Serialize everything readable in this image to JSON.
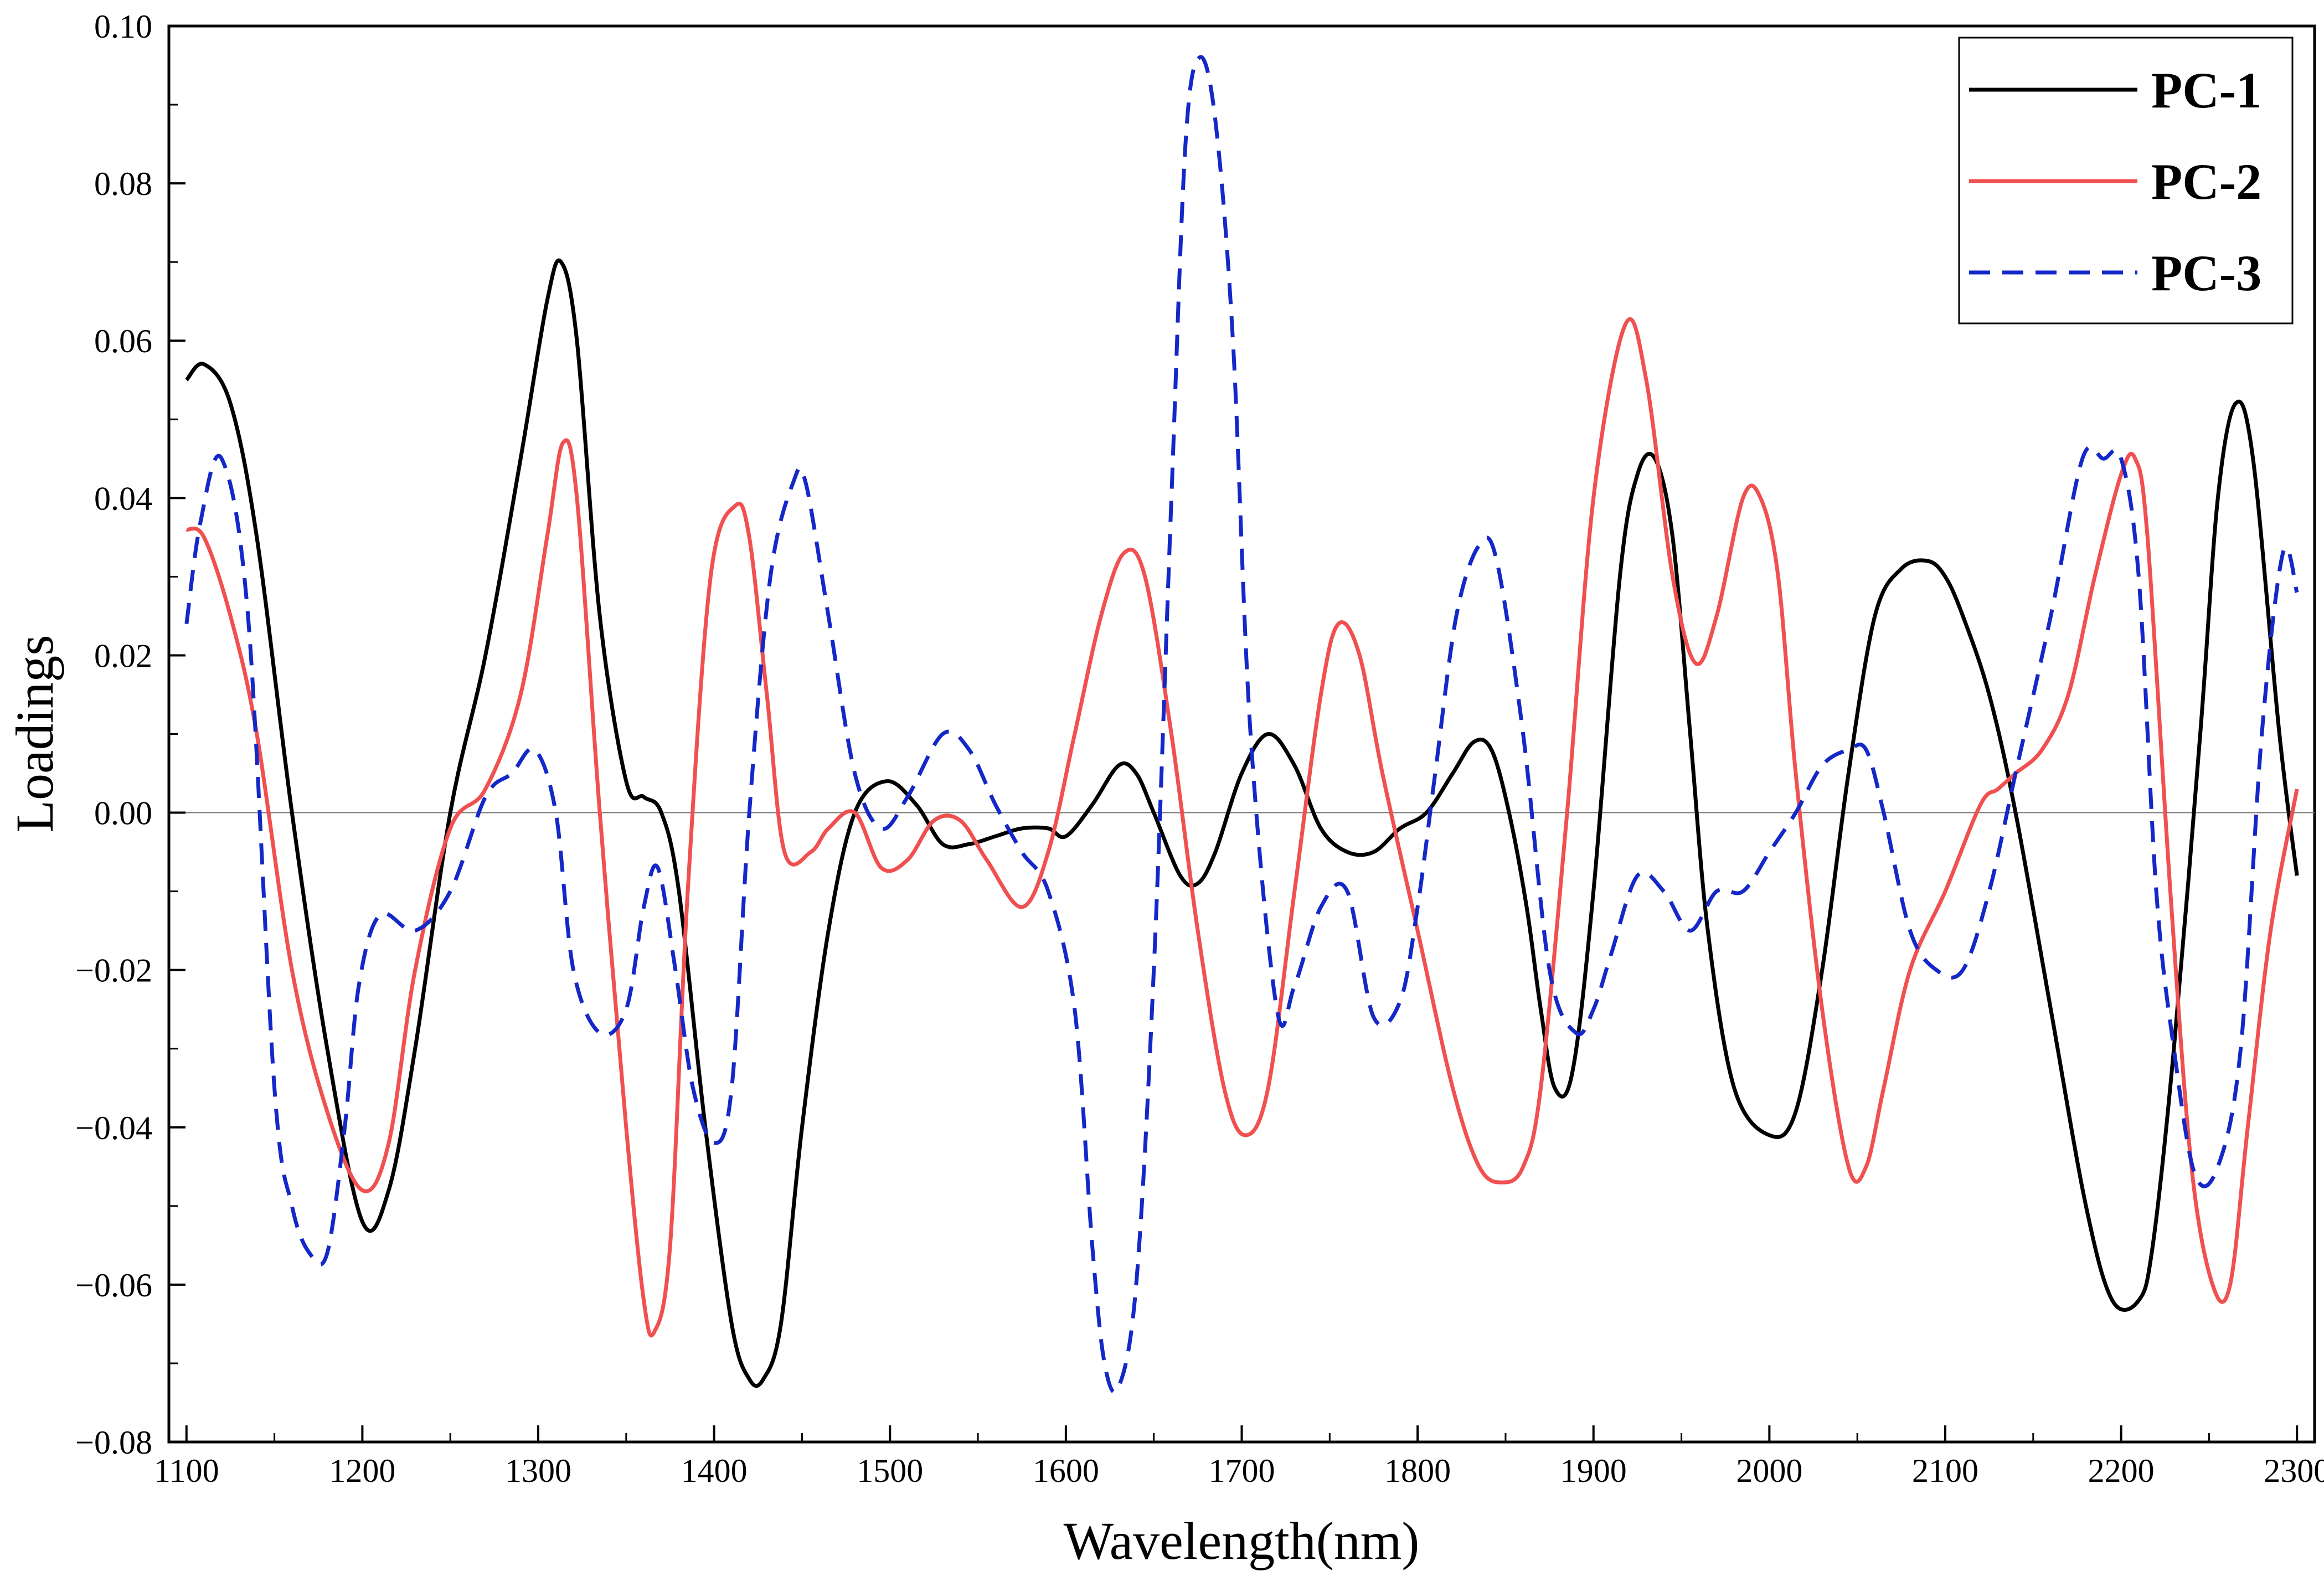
{
  "chart_data": {
    "type": "line",
    "title": "",
    "xlabel": "Wavelength(nm)",
    "ylabel": "Loadings",
    "xlim": [
      1090,
      2310
    ],
    "ylim": [
      -0.08,
      0.1
    ],
    "xticks": [
      1100,
      1200,
      1300,
      1400,
      1500,
      1600,
      1700,
      1800,
      1900,
      2000,
      2100,
      2200,
      2300
    ],
    "xtick_labels": [
      "1100",
      "1200",
      "1300",
      "1400",
      "1500",
      "1600",
      "1700",
      "1800",
      "1900",
      "2000",
      "2100",
      "2200",
      "2300"
    ],
    "yticks": [
      -0.08,
      -0.06,
      -0.04,
      -0.02,
      0.0,
      0.02,
      0.04,
      0.06,
      0.08,
      0.1
    ],
    "ytick_labels": [
      "−0.08",
      "−0.06",
      "−0.04",
      "−0.02",
      "0.00",
      "0.02",
      "0.04",
      "0.06",
      "0.08",
      "0.10"
    ],
    "zero_line": true,
    "legend_position": "top-right",
    "series": [
      {
        "name": "PC-1",
        "color": "#000000",
        "dash": "solid",
        "x": [
          1100,
          1110,
          1125,
          1140,
          1160,
          1180,
          1200,
          1215,
          1230,
          1250,
          1270,
          1290,
          1305,
          1313,
          1322,
          1335,
          1350,
          1360,
          1370,
          1380,
          1395,
          1410,
          1420,
          1428,
          1438,
          1450,
          1465,
          1480,
          1498,
          1515,
          1530,
          1545,
          1560,
          1575,
          1590,
          1600,
          1615,
          1630,
          1640,
          1650,
          1665,
          1675,
          1685,
          1700,
          1715,
          1730,
          1745,
          1760,
          1775,
          1790,
          1805,
          1820,
          1832,
          1842,
          1852,
          1862,
          1870,
          1878,
          1888,
          1900,
          1915,
          1925,
          1935,
          1945,
          1955,
          1965,
          1980,
          2000,
          2015,
          2030,
          2045,
          2060,
          2075,
          2090,
          2100,
          2110,
          2125,
          2140,
          2160,
          2180,
          2195,
          2210,
          2218,
          2230,
          2245,
          2255,
          2265,
          2275,
          2290,
          2300
        ],
        "values": [
          0.055,
          0.057,
          0.052,
          0.035,
          0.0,
          -0.03,
          -0.052,
          -0.048,
          -0.03,
          0.0,
          0.02,
          0.045,
          0.065,
          0.07,
          0.06,
          0.025,
          0.004,
          0.002,
          0.0,
          -0.01,
          -0.04,
          -0.065,
          -0.072,
          -0.072,
          -0.065,
          -0.04,
          -0.015,
          0.0,
          0.004,
          0.001,
          -0.004,
          -0.004,
          -0.003,
          -0.002,
          -0.002,
          -0.003,
          0.001,
          0.006,
          0.005,
          0.0,
          -0.008,
          -0.009,
          -0.005,
          0.005,
          0.01,
          0.006,
          -0.002,
          -0.005,
          -0.005,
          -0.002,
          0.0,
          0.005,
          0.009,
          0.008,
          0.0,
          -0.012,
          -0.025,
          -0.035,
          -0.033,
          -0.01,
          0.03,
          0.043,
          0.045,
          0.035,
          0.01,
          -0.015,
          -0.035,
          -0.041,
          -0.038,
          -0.02,
          0.005,
          0.025,
          0.031,
          0.032,
          0.03,
          0.025,
          0.015,
          0.0,
          -0.025,
          -0.05,
          -0.062,
          -0.062,
          -0.055,
          -0.03,
          0.01,
          0.04,
          0.052,
          0.045,
          0.01,
          -0.008
        ]
      },
      {
        "name": "PC-2",
        "color": "#f05050",
        "dash": "solid",
        "x": [
          1100,
          1110,
          1125,
          1140,
          1160,
          1180,
          1200,
          1215,
          1230,
          1250,
          1270,
          1290,
          1305,
          1314,
          1322,
          1335,
          1350,
          1360,
          1366,
          1375,
          1385,
          1398,
          1412,
          1420,
          1430,
          1440,
          1455,
          1465,
          1480,
          1495,
          1510,
          1525,
          1540,
          1555,
          1575,
          1590,
          1605,
          1620,
          1633,
          1645,
          1660,
          1675,
          1690,
          1702,
          1715,
          1730,
          1745,
          1755,
          1767,
          1780,
          1800,
          1820,
          1835,
          1848,
          1860,
          1870,
          1885,
          1900,
          1918,
          1930,
          1945,
          1958,
          1970,
          1985,
          1995,
          2005,
          2015,
          2030,
          2045,
          2055,
          2065,
          2080,
          2100,
          2120,
          2130,
          2140,
          2155,
          2170,
          2185,
          2200,
          2208,
          2215,
          2228,
          2240,
          2252,
          2262,
          2272,
          2285,
          2300
        ],
        "values": [
          0.036,
          0.035,
          0.025,
          0.01,
          -0.02,
          -0.038,
          -0.048,
          -0.042,
          -0.02,
          -0.002,
          0.003,
          0.015,
          0.035,
          0.047,
          0.04,
          0.0,
          -0.04,
          -0.062,
          -0.066,
          -0.055,
          -0.01,
          0.03,
          0.039,
          0.035,
          0.015,
          -0.005,
          -0.005,
          -0.002,
          0.0,
          -0.007,
          -0.006,
          -0.001,
          -0.001,
          -0.006,
          -0.012,
          -0.005,
          0.01,
          0.025,
          0.033,
          0.03,
          0.01,
          -0.015,
          -0.035,
          -0.041,
          -0.035,
          -0.01,
          0.015,
          0.024,
          0.02,
          0.005,
          -0.015,
          -0.035,
          -0.045,
          -0.047,
          -0.045,
          -0.035,
          0.0,
          0.04,
          0.062,
          0.055,
          0.03,
          0.019,
          0.025,
          0.04,
          0.04,
          0.03,
          0.005,
          -0.025,
          -0.045,
          -0.045,
          -0.035,
          -0.02,
          -0.01,
          0.001,
          0.003,
          0.005,
          0.008,
          0.015,
          0.03,
          0.043,
          0.045,
          0.035,
          -0.01,
          -0.045,
          -0.06,
          -0.06,
          -0.04,
          -0.015,
          0.003
        ]
      },
      {
        "name": "PC-3",
        "color": "#1428c8",
        "dash": "dashed",
        "x": [
          1100,
          1108,
          1120,
          1135,
          1150,
          1160,
          1170,
          1180,
          1190,
          1198,
          1210,
          1230,
          1250,
          1270,
          1285,
          1298,
          1310,
          1320,
          1335,
          1350,
          1360,
          1368,
          1378,
          1388,
          1400,
          1410,
          1420,
          1432,
          1445,
          1452,
          1465,
          1480,
          1495,
          1510,
          1530,
          1545,
          1560,
          1575,
          1590,
          1605,
          1615,
          1622,
          1630,
          1640,
          1650,
          1660,
          1668,
          1676,
          1685,
          1695,
          1705,
          1720,
          1730,
          1745,
          1760,
          1775,
          1790,
          1800,
          1810,
          1822,
          1835,
          1845,
          1860,
          1875,
          1890,
          1900,
          1910,
          1925,
          1940,
          1955,
          1970,
          1985,
          2000,
          2015,
          2030,
          2045,
          2055,
          2065,
          2080,
          2095,
          2110,
          2125,
          2140,
          2160,
          2178,
          2190,
          2200,
          2210,
          2220,
          2230,
          2242,
          2255,
          2268,
          2280,
          2292,
          2300
        ],
        "values": [
          0.024,
          0.037,
          0.045,
          0.025,
          -0.035,
          -0.05,
          -0.056,
          -0.056,
          -0.04,
          -0.022,
          -0.013,
          -0.015,
          -0.01,
          0.002,
          0.005,
          0.008,
          0.0,
          -0.02,
          -0.028,
          -0.025,
          -0.012,
          -0.007,
          -0.02,
          -0.035,
          -0.042,
          -0.035,
          0.0,
          0.03,
          0.042,
          0.042,
          0.025,
          0.005,
          -0.002,
          0.002,
          0.01,
          0.008,
          0.001,
          -0.005,
          -0.01,
          -0.025,
          -0.055,
          -0.07,
          -0.073,
          -0.06,
          -0.02,
          0.04,
          0.085,
          0.096,
          0.088,
          0.06,
          0.01,
          -0.025,
          -0.022,
          -0.012,
          -0.01,
          -0.026,
          -0.024,
          -0.012,
          0.005,
          0.025,
          0.034,
          0.032,
          0.01,
          -0.02,
          -0.028,
          -0.025,
          -0.018,
          -0.008,
          -0.01,
          -0.015,
          -0.01,
          -0.01,
          -0.005,
          0.0,
          0.006,
          0.008,
          0.008,
          0.0,
          -0.015,
          -0.02,
          -0.02,
          -0.01,
          0.005,
          0.025,
          0.045,
          0.045,
          0.045,
          0.03,
          -0.01,
          -0.03,
          -0.046,
          -0.045,
          -0.03,
          0.01,
          0.033,
          0.028
        ]
      }
    ]
  }
}
